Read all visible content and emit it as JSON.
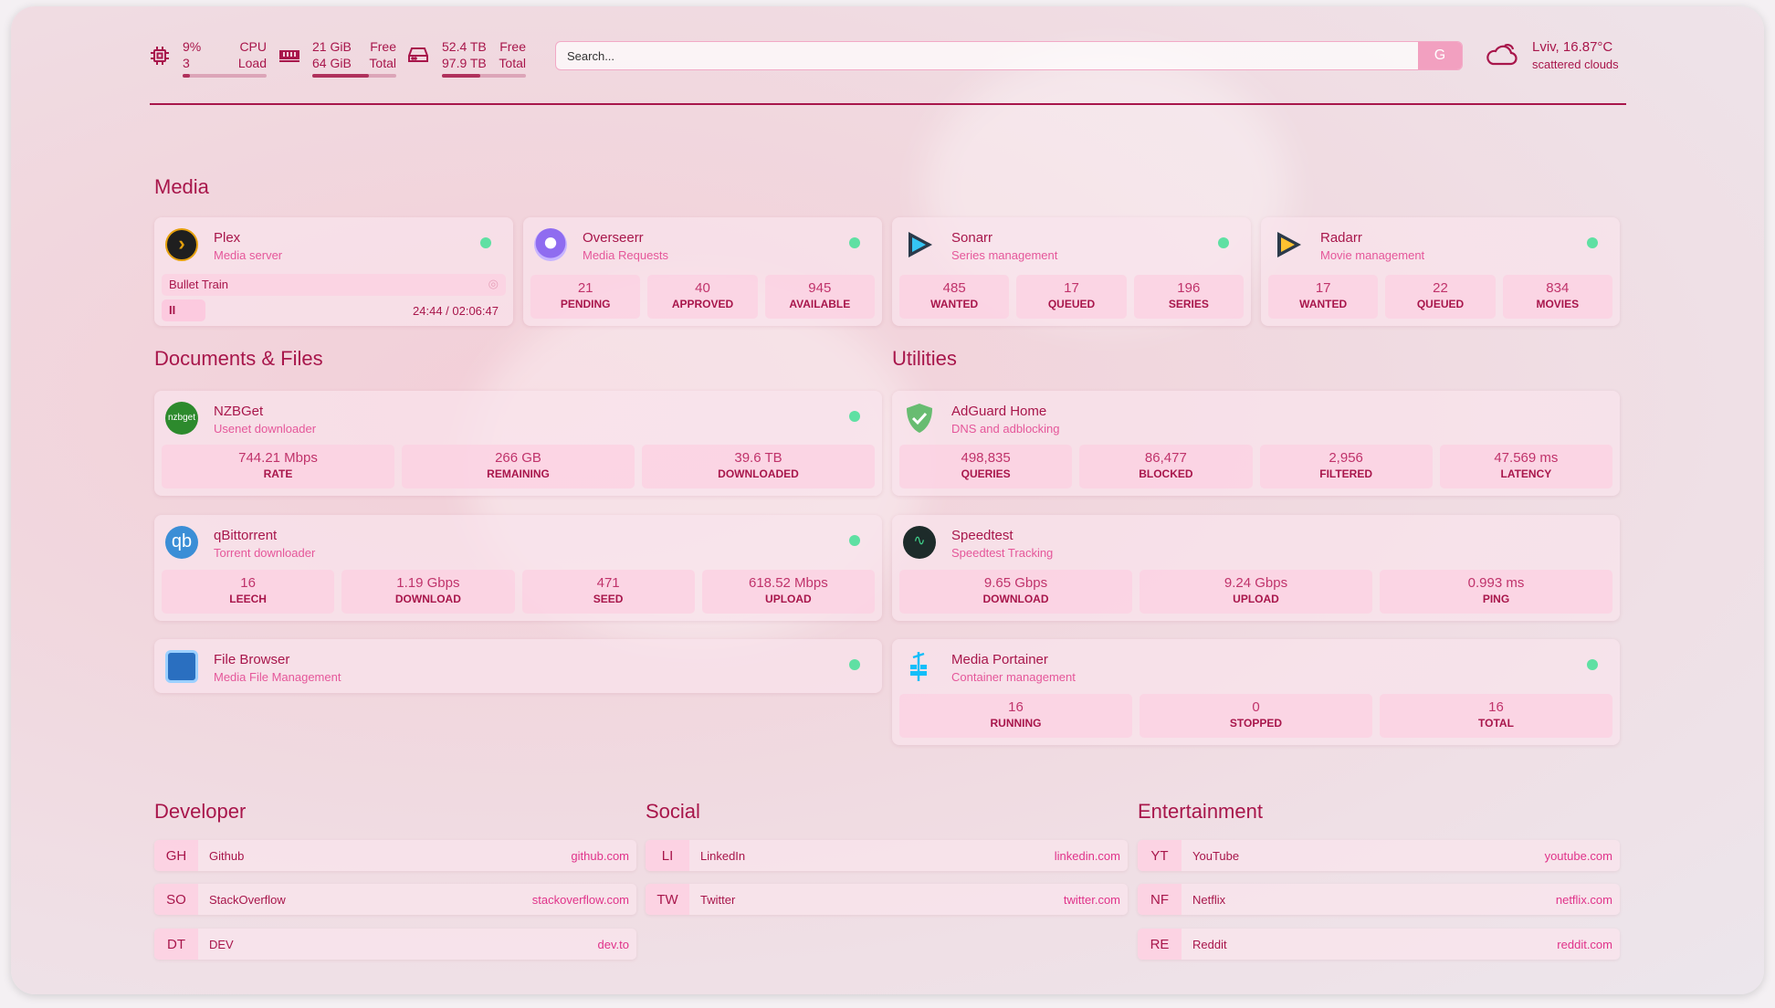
{
  "header": {
    "cpu": {
      "icon": "cpu-icon",
      "value": "9%",
      "sub": "3",
      "label1": "CPU",
      "label2": "Load",
      "percent": 9
    },
    "memory": {
      "icon": "memory-icon",
      "free": "21 GiB",
      "total": "64 GiB",
      "label1": "Free",
      "label2": "Total",
      "percent": 67
    },
    "disk": {
      "icon": "disk-icon",
      "free": "52.4 TB",
      "total": "97.9 TB",
      "label1": "Free",
      "label2": "Total",
      "percent": 46
    },
    "search": {
      "placeholder": "Search...",
      "button": "G"
    },
    "weather": {
      "icon": "cloud-icon",
      "location": "Lviv, 16.87°C",
      "condition": "scattered clouds"
    }
  },
  "media": {
    "title": "Media",
    "cards": [
      {
        "name": "Plex",
        "desc": "Media server",
        "now_playing": "Bullet Train",
        "time": "24:44 / 02:06:47"
      },
      {
        "name": "Overseerr",
        "desc": "Media Requests",
        "stats": [
          {
            "v": "21",
            "l": "PENDING"
          },
          {
            "v": "40",
            "l": "APPROVED"
          },
          {
            "v": "945",
            "l": "AVAILABLE"
          }
        ]
      },
      {
        "name": "Sonarr",
        "desc": "Series management",
        "stats": [
          {
            "v": "485",
            "l": "WANTED"
          },
          {
            "v": "17",
            "l": "QUEUED"
          },
          {
            "v": "196",
            "l": "SERIES"
          }
        ]
      },
      {
        "name": "Radarr",
        "desc": "Movie management",
        "stats": [
          {
            "v": "17",
            "l": "WANTED"
          },
          {
            "v": "22",
            "l": "QUEUED"
          },
          {
            "v": "834",
            "l": "MOVIES"
          }
        ]
      }
    ]
  },
  "docs": {
    "title": "Documents & Files",
    "cards": [
      {
        "name": "NZBGet",
        "desc": "Usenet downloader",
        "logo_text": "nzbget",
        "stats": [
          {
            "v": "744.21 Mbps",
            "l": "RATE"
          },
          {
            "v": "266 GB",
            "l": "REMAINING"
          },
          {
            "v": "39.6 TB",
            "l": "DOWNLOADED"
          }
        ]
      },
      {
        "name": "qBittorrent",
        "desc": "Torrent downloader",
        "logo_text": "qb",
        "stats": [
          {
            "v": "16",
            "l": "LEECH"
          },
          {
            "v": "1.19 Gbps",
            "l": "DOWNLOAD"
          },
          {
            "v": "471",
            "l": "SEED"
          },
          {
            "v": "618.52 Mbps",
            "l": "UPLOAD"
          }
        ]
      },
      {
        "name": "File Browser",
        "desc": "Media File Management"
      }
    ]
  },
  "utilities": {
    "title": "Utilities",
    "cards": [
      {
        "name": "AdGuard Home",
        "desc": "DNS and adblocking",
        "stats": [
          {
            "v": "498,835",
            "l": "QUERIES"
          },
          {
            "v": "86,477",
            "l": "BLOCKED"
          },
          {
            "v": "2,956",
            "l": "FILTERED"
          },
          {
            "v": "47.569 ms",
            "l": "LATENCY"
          }
        ]
      },
      {
        "name": "Speedtest",
        "desc": "Speedtest Tracking",
        "stats": [
          {
            "v": "9.65 Gbps",
            "l": "DOWNLOAD"
          },
          {
            "v": "9.24 Gbps",
            "l": "UPLOAD"
          },
          {
            "v": "0.993 ms",
            "l": "PING"
          }
        ]
      },
      {
        "name": "Media Portainer",
        "desc": "Container management",
        "stats": [
          {
            "v": "16",
            "l": "RUNNING"
          },
          {
            "v": "0",
            "l": "STOPPED"
          },
          {
            "v": "16",
            "l": "TOTAL"
          }
        ]
      }
    ]
  },
  "bookmarks": [
    {
      "title": "Developer",
      "items": [
        {
          "abbr": "GH",
          "name": "Github",
          "url": "github.com"
        },
        {
          "abbr": "SO",
          "name": "StackOverflow",
          "url": "stackoverflow.com"
        },
        {
          "abbr": "DT",
          "name": "DEV",
          "url": "dev.to"
        }
      ]
    },
    {
      "title": "Social",
      "items": [
        {
          "abbr": "LI",
          "name": "LinkedIn",
          "url": "linkedin.com"
        },
        {
          "abbr": "TW",
          "name": "Twitter",
          "url": "twitter.com"
        }
      ]
    },
    {
      "title": "Entertainment",
      "items": [
        {
          "abbr": "YT",
          "name": "YouTube",
          "url": "youtube.com"
        },
        {
          "abbr": "NF",
          "name": "Netflix",
          "url": "netflix.com"
        },
        {
          "abbr": "RE",
          "name": "Reddit",
          "url": "reddit.com"
        }
      ]
    }
  ],
  "colors": {
    "accent": "#a8164b",
    "status_online": "#5fe0a3"
  }
}
